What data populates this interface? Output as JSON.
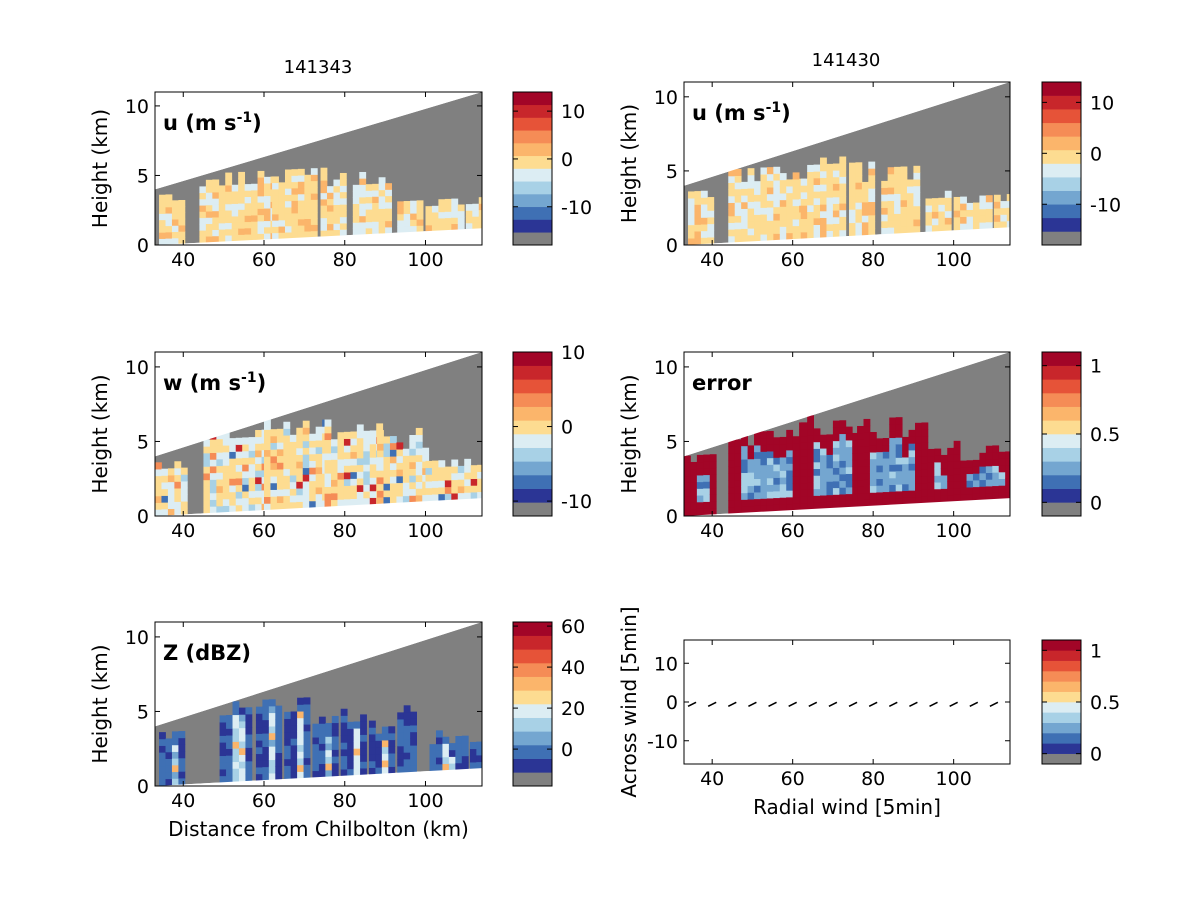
{
  "figure": {
    "titles": {
      "left": "141343",
      "right": "141430"
    },
    "colors": {
      "masked_gray": "#808080",
      "colormap": [
        "#2b3595",
        "#3f70b4",
        "#74a6d0",
        "#a8d1e6",
        "#dcedf3",
        "#fddc91",
        "#fbb56b",
        "#f58c56",
        "#e65338",
        "#c8262b",
        "#a20527"
      ]
    }
  },
  "chart_data": [
    {
      "id": "u_141343",
      "type": "heatmap",
      "title": "141343",
      "panel_label": "u (m s-1)",
      "xlabel": "",
      "ylabel": "Height (km)",
      "xlim": [
        33,
        114
      ],
      "ylim": [
        0,
        11
      ],
      "xticks": [
        40,
        60,
        80,
        100
      ],
      "yticks": [
        0,
        5,
        10
      ],
      "colorbar": {
        "ticks": [
          10,
          0,
          -10
        ],
        "range": [
          -18,
          14
        ]
      },
      "scan_top": {
        "x": [
          33,
          114
        ],
        "height": [
          4.0,
          11.0
        ]
      },
      "scan_bottom": {
        "x": [
          33,
          114
        ],
        "height": [
          0.0,
          1.2
        ]
      },
      "echo_columns": [
        {
          "x": [
            34,
            40
          ],
          "top": 3.5
        },
        {
          "x": [
            44,
            62
          ],
          "top": 5.0
        },
        {
          "x": [
            62,
            72
          ],
          "top": 5.2
        },
        {
          "x": [
            74,
            80
          ],
          "top": 5.0
        },
        {
          "x": [
            82,
            90
          ],
          "top": 4.8
        },
        {
          "x": [
            93,
            99
          ],
          "top": 3.2
        },
        {
          "x": [
            100,
            108
          ],
          "top": 3.0
        },
        {
          "x": [
            110,
            114
          ],
          "top": 3.0
        }
      ]
    },
    {
      "id": "u_141430",
      "type": "heatmap",
      "title": "141430",
      "panel_label": "u (m s-1)",
      "xlabel": "",
      "ylabel": "Height (km)",
      "xlim": [
        33,
        114
      ],
      "ylim": [
        0,
        11
      ],
      "xticks": [
        40,
        60,
        80,
        100
      ],
      "yticks": [
        0,
        5,
        10
      ],
      "colorbar": {
        "ticks": [
          10,
          0,
          -10
        ],
        "range": [
          -18,
          14
        ]
      },
      "scan_top": {
        "x": [
          33,
          114
        ],
        "height": [
          4.0,
          11.0
        ]
      },
      "scan_bottom": {
        "x": [
          33,
          114
        ],
        "height": [
          0.0,
          1.2
        ]
      },
      "echo_columns": [
        {
          "x": [
            34,
            40
          ],
          "top": 3.5
        },
        {
          "x": [
            44,
            62
          ],
          "top": 5.0
        },
        {
          "x": [
            62,
            72
          ],
          "top": 5.5
        },
        {
          "x": [
            74,
            80
          ],
          "top": 5.2
        },
        {
          "x": [
            82,
            90
          ],
          "top": 5.0
        },
        {
          "x": [
            93,
            99
          ],
          "top": 3.2
        },
        {
          "x": [
            100,
            108
          ],
          "top": 3.2
        },
        {
          "x": [
            110,
            114
          ],
          "top": 3.0
        }
      ]
    },
    {
      "id": "w_141343",
      "type": "heatmap",
      "panel_label": "w (m s-1)",
      "xlabel": "",
      "ylabel": "Height (km)",
      "xlim": [
        33,
        114
      ],
      "ylim": [
        0,
        11
      ],
      "xticks": [
        40,
        60,
        80,
        100
      ],
      "yticks": [
        0,
        5,
        10
      ],
      "colorbar": {
        "ticks": [
          10,
          0,
          -10
        ],
        "range": [
          -12,
          10
        ]
      },
      "scan_top": {
        "x": [
          33,
          114
        ],
        "height": [
          4.0,
          11.0
        ]
      },
      "scan_bottom": {
        "x": [
          33,
          114
        ],
        "height": [
          0.0,
          1.2
        ]
      },
      "echo_columns": [
        {
          "x": [
            33,
            41
          ],
          "top": 3.3
        },
        {
          "x": [
            45,
            60
          ],
          "top": 5.5
        },
        {
          "x": [
            60,
            75
          ],
          "top": 6.2
        },
        {
          "x": [
            75,
            88
          ],
          "top": 6.4
        },
        {
          "x": [
            88,
            100
          ],
          "top": 5.6
        },
        {
          "x": [
            100,
            114
          ],
          "top": 3.6
        }
      ]
    },
    {
      "id": "error_141430",
      "type": "heatmap",
      "panel_label": "error",
      "xlabel": "",
      "ylabel": "Height (km)",
      "xlim": [
        33,
        114
      ],
      "ylim": [
        0,
        11
      ],
      "xticks": [
        40,
        60,
        80,
        100
      ],
      "yticks": [
        0,
        5,
        10
      ],
      "colorbar": {
        "ticks": [
          1,
          0.5,
          0
        ],
        "range": [
          -0.1,
          1.1
        ]
      },
      "scan_top": {
        "x": [
          33,
          114
        ],
        "height": [
          4.0,
          11.0
        ]
      },
      "scan_bottom": {
        "x": [
          33,
          114
        ],
        "height": [
          0.0,
          1.2
        ]
      },
      "echo_columns": [
        {
          "x": [
            33,
            41
          ],
          "top": 3.8
        },
        {
          "x": [
            44,
            62
          ],
          "top": 5.8
        },
        {
          "x": [
            62,
            76
          ],
          "top": 6.4
        },
        {
          "x": [
            76,
            92
          ],
          "top": 6.3
        },
        {
          "x": [
            92,
            100
          ],
          "top": 4.6
        },
        {
          "x": [
            100,
            114
          ],
          "top": 4.2
        }
      ]
    },
    {
      "id": "Z_141343",
      "type": "heatmap",
      "panel_label": "Z (dBZ)",
      "xlabel": "Distance from Chilbolton (km)",
      "ylabel": "Height (km)",
      "xlim": [
        33,
        114
      ],
      "ylim": [
        0,
        11
      ],
      "xticks": [
        40,
        60,
        80,
        100
      ],
      "yticks": [
        0,
        5,
        10
      ],
      "colorbar": {
        "ticks": [
          60,
          40,
          20,
          0
        ],
        "range": [
          -18,
          62
        ]
      },
      "scan_top": {
        "x": [
          33,
          114
        ],
        "height": [
          4.0,
          11.0
        ]
      },
      "scan_bottom": {
        "x": [
          33,
          114
        ],
        "height": [
          0.0,
          1.2
        ]
      },
      "echo_columns": [
        {
          "x": [
            34,
            40
          ],
          "top": 3.6
        },
        {
          "x": [
            49,
            57
          ],
          "top": 5.2
        },
        {
          "x": [
            58,
            64
          ],
          "top": 5.6
        },
        {
          "x": [
            65,
            71
          ],
          "top": 5.4
        },
        {
          "x": [
            72,
            78
          ],
          "top": 4.6
        },
        {
          "x": [
            79,
            84
          ],
          "top": 4.8
        },
        {
          "x": [
            86,
            92
          ],
          "top": 4.2
        },
        {
          "x": [
            93,
            97
          ],
          "top": 5.0
        },
        {
          "x": [
            101,
            109
          ],
          "top": 3.2
        },
        {
          "x": [
            111,
            114
          ],
          "top": 3.0
        }
      ]
    },
    {
      "id": "wind_panel",
      "type": "scatter",
      "xlabel": "Radial wind [5min]",
      "ylabel": "Across wind [5min]",
      "xlim": [
        33,
        114
      ],
      "ylim": [
        -16,
        16
      ],
      "xticks": [
        40,
        60,
        80,
        100
      ],
      "yticks": [
        10,
        0,
        -10
      ],
      "colorbar": {
        "ticks": [
          1,
          0.5,
          0
        ],
        "range": [
          -0.1,
          1.1
        ]
      },
      "x": [
        35,
        40,
        45,
        50,
        55,
        60,
        65,
        70,
        75,
        80,
        85,
        90,
        95,
        100,
        105,
        110
      ],
      "y": [
        -0.6,
        -0.6,
        -0.6,
        -0.6,
        -0.6,
        -0.6,
        -0.6,
        -0.6,
        -0.6,
        -0.6,
        -0.6,
        -0.6,
        -0.6,
        -0.6,
        -0.6,
        -0.6
      ]
    }
  ]
}
